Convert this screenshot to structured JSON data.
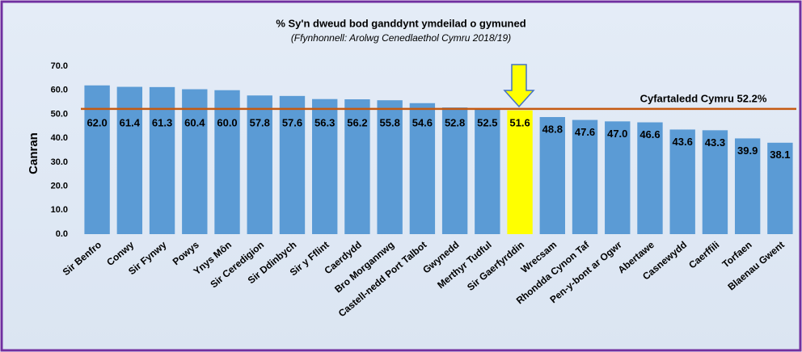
{
  "chart_data": {
    "type": "bar",
    "title": "% Sy'n dweud bod ganddynt ymdeilad o gymuned",
    "subtitle": "(Ffynhonnell: Arolwg Cenedlaethol Cymru 2018/19)",
    "y_label": "Canran",
    "categories": [
      "Sir Benfro",
      "Conwy",
      "Sir Fynwy",
      "Powys",
      "Ynys Môn",
      "Sir Ceredigion",
      "Sir Ddinbych",
      "Sir y Fflint",
      "Caerdydd",
      "Bro Morgannwg",
      "Castell-nedd Port Talbot",
      "Gwynedd",
      "Merthyr Tudful",
      "Sir Gaerfyrddin",
      "Wrecsam",
      "Rhondda Cynon Taf",
      "Pen-y-bont ar Ogwr",
      "Abertawe",
      "Casnewydd",
      "Caerffili",
      "Torfaen",
      "Blaenau Gwent"
    ],
    "values": [
      62.0,
      61.4,
      61.3,
      60.4,
      60.0,
      57.8,
      57.6,
      56.3,
      56.2,
      55.8,
      54.6,
      52.8,
      52.5,
      51.6,
      48.8,
      47.6,
      47.0,
      46.6,
      43.6,
      43.3,
      39.9,
      38.1
    ],
    "value_labels": [
      "62.0",
      "61.4",
      "61.3",
      "60.4",
      "60.0",
      "57.8",
      "57.6",
      "56.3",
      "56.2",
      "55.8",
      "54.6",
      "52.8",
      "52.5",
      "51.6",
      "48.8",
      "47.6",
      "47.0",
      "46.6",
      "43.6",
      "43.3",
      "39.9",
      "38.1"
    ],
    "colors": [
      "#5b9bd5",
      "#5b9bd5",
      "#5b9bd5",
      "#5b9bd5",
      "#5b9bd5",
      "#5b9bd5",
      "#5b9bd5",
      "#5b9bd5",
      "#5b9bd5",
      "#5b9bd5",
      "#5b9bd5",
      "#5b9bd5",
      "#5b9bd5",
      "#ffff00",
      "#5b9bd5",
      "#5b9bd5",
      "#5b9bd5",
      "#5b9bd5",
      "#5b9bd5",
      "#5b9bd5",
      "#5b9bd5",
      "#5b9bd5"
    ],
    "ylim": [
      0,
      70
    ],
    "yticks": [
      {
        "value": 0,
        "label": "0.0"
      },
      {
        "value": 10,
        "label": "10.0"
      },
      {
        "value": 20,
        "label": "20.0"
      },
      {
        "value": 30,
        "label": "30.0"
      },
      {
        "value": 40,
        "label": "40.0"
      },
      {
        "value": 50,
        "label": "50.0"
      },
      {
        "value": 60,
        "label": "60.0"
      },
      {
        "value": 70,
        "label": "70.0"
      }
    ],
    "reference_line": {
      "value": 52.2,
      "label": "Cyfartaledd Cymru 52.2%",
      "color": "#c55a11"
    }
  }
}
